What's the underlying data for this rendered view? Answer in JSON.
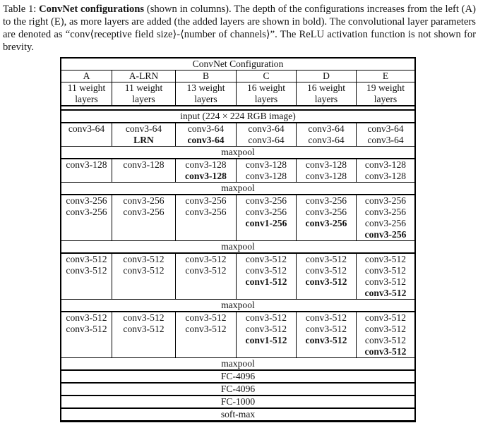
{
  "caption": {
    "prefix": "Table 1: ",
    "bold_title": "ConvNet configurations",
    "rest": " (shown in columns). The depth of the configurations increases from the left (A) to the right (E), as more layers are added (the added layers are shown in bold). The convolutional layer parameters are denoted as “conv⟨receptive field size⟩-⟨number of channels⟩”. The ReLU activation function is not shown for brevity."
  },
  "table": {
    "title": "ConvNet Configuration",
    "columns": [
      "A",
      "A-LRN",
      "B",
      "C",
      "D",
      "E"
    ],
    "subheaders": [
      "11 weight\nlayers",
      "11 weight\nlayers",
      "13 weight\nlayers",
      "16 weight\nlayers",
      "16 weight\nlayers",
      "19 weight\nlayers"
    ],
    "input_row": "input (224 × 224 RGB image)",
    "maxpool_label": "maxpool",
    "blocks": [
      {
        "cells": [
          [
            [
              "conv3-64",
              0
            ]
          ],
          [
            [
              "conv3-64",
              0
            ],
            [
              "LRN",
              1
            ]
          ],
          [
            [
              "conv3-64",
              0
            ],
            [
              "conv3-64",
              1
            ]
          ],
          [
            [
              "conv3-64",
              0
            ],
            [
              "conv3-64",
              0
            ]
          ],
          [
            [
              "conv3-64",
              0
            ],
            [
              "conv3-64",
              0
            ]
          ],
          [
            [
              "conv3-64",
              0
            ],
            [
              "conv3-64",
              0
            ]
          ]
        ]
      },
      {
        "cells": [
          [
            [
              "conv3-128",
              0
            ]
          ],
          [
            [
              "conv3-128",
              0
            ]
          ],
          [
            [
              "conv3-128",
              0
            ],
            [
              "conv3-128",
              1
            ]
          ],
          [
            [
              "conv3-128",
              0
            ],
            [
              "conv3-128",
              0
            ]
          ],
          [
            [
              "conv3-128",
              0
            ],
            [
              "conv3-128",
              0
            ]
          ],
          [
            [
              "conv3-128",
              0
            ],
            [
              "conv3-128",
              0
            ]
          ]
        ]
      },
      {
        "cells": [
          [
            [
              "conv3-256",
              0
            ],
            [
              "conv3-256",
              0
            ]
          ],
          [
            [
              "conv3-256",
              0
            ],
            [
              "conv3-256",
              0
            ]
          ],
          [
            [
              "conv3-256",
              0
            ],
            [
              "conv3-256",
              0
            ]
          ],
          [
            [
              "conv3-256",
              0
            ],
            [
              "conv3-256",
              0
            ],
            [
              "conv1-256",
              1
            ]
          ],
          [
            [
              "conv3-256",
              0
            ],
            [
              "conv3-256",
              0
            ],
            [
              "conv3-256",
              1
            ]
          ],
          [
            [
              "conv3-256",
              0
            ],
            [
              "conv3-256",
              0
            ],
            [
              "conv3-256",
              0
            ],
            [
              "conv3-256",
              1
            ]
          ]
        ]
      },
      {
        "cells": [
          [
            [
              "conv3-512",
              0
            ],
            [
              "conv3-512",
              0
            ]
          ],
          [
            [
              "conv3-512",
              0
            ],
            [
              "conv3-512",
              0
            ]
          ],
          [
            [
              "conv3-512",
              0
            ],
            [
              "conv3-512",
              0
            ]
          ],
          [
            [
              "conv3-512",
              0
            ],
            [
              "conv3-512",
              0
            ],
            [
              "conv1-512",
              1
            ]
          ],
          [
            [
              "conv3-512",
              0
            ],
            [
              "conv3-512",
              0
            ],
            [
              "conv3-512",
              1
            ]
          ],
          [
            [
              "conv3-512",
              0
            ],
            [
              "conv3-512",
              0
            ],
            [
              "conv3-512",
              0
            ],
            [
              "conv3-512",
              1
            ]
          ]
        ]
      },
      {
        "cells": [
          [
            [
              "conv3-512",
              0
            ],
            [
              "conv3-512",
              0
            ]
          ],
          [
            [
              "conv3-512",
              0
            ],
            [
              "conv3-512",
              0
            ]
          ],
          [
            [
              "conv3-512",
              0
            ],
            [
              "conv3-512",
              0
            ]
          ],
          [
            [
              "conv3-512",
              0
            ],
            [
              "conv3-512",
              0
            ],
            [
              "conv1-512",
              1
            ]
          ],
          [
            [
              "conv3-512",
              0
            ],
            [
              "conv3-512",
              0
            ],
            [
              "conv3-512",
              1
            ]
          ],
          [
            [
              "conv3-512",
              0
            ],
            [
              "conv3-512",
              0
            ],
            [
              "conv3-512",
              0
            ],
            [
              "conv3-512",
              1
            ]
          ]
        ]
      }
    ],
    "tail_rows": [
      "FC-4096",
      "FC-4096",
      "FC-1000",
      "soft-max"
    ]
  }
}
